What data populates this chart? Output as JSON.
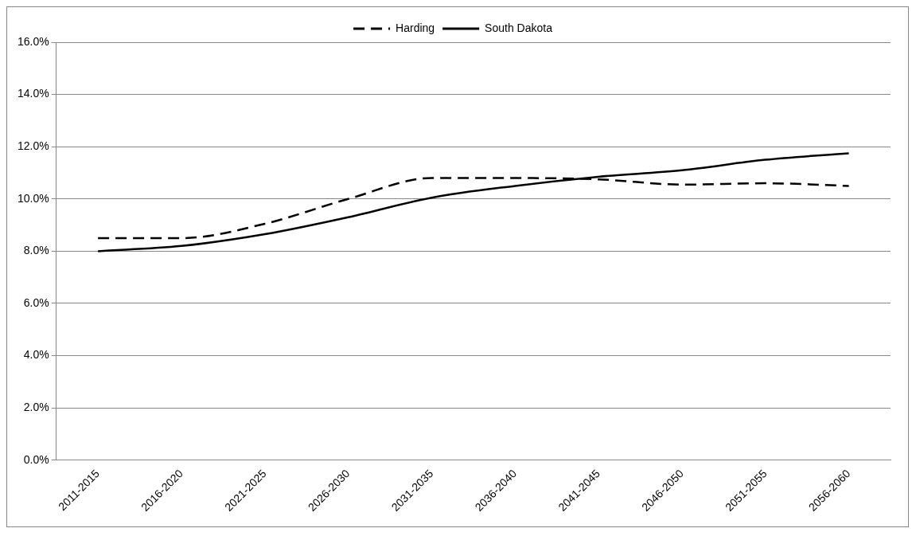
{
  "chart_data": {
    "type": "line",
    "categories": [
      "2011-2015",
      "2016-2020",
      "2021-2025",
      "2026-2030",
      "2031-2035",
      "2036-2040",
      "2041-2045",
      "2046-2050",
      "2051-2055",
      "2056-2060"
    ],
    "series": [
      {
        "name": "Harding",
        "color": "#000000",
        "line_style": "dashed",
        "values": [
          8.5,
          8.5,
          9.05,
          10.0,
          10.8,
          10.8,
          10.75,
          10.55,
          10.6,
          10.5
        ]
      },
      {
        "name": "South Dakota",
        "color": "#000000",
        "line_style": "solid",
        "values": [
          8.0,
          8.2,
          8.65,
          9.3,
          10.05,
          10.5,
          10.85,
          11.1,
          11.5,
          11.75
        ]
      }
    ],
    "ylim": [
      0,
      16
    ],
    "yticks": [
      {
        "value": 0,
        "label": "0.0%"
      },
      {
        "value": 2,
        "label": "2.0%"
      },
      {
        "value": 4,
        "label": "4.0%"
      },
      {
        "value": 6,
        "label": "6.0%"
      },
      {
        "value": 8,
        "label": "8.0%"
      },
      {
        "value": 10,
        "label": "10.0%"
      },
      {
        "value": 12,
        "label": "12.0%"
      },
      {
        "value": 14,
        "label": "14.0%"
      },
      {
        "value": 16,
        "label": "16.0%"
      }
    ],
    "grid": "y",
    "legend": "top",
    "marker": "none"
  }
}
